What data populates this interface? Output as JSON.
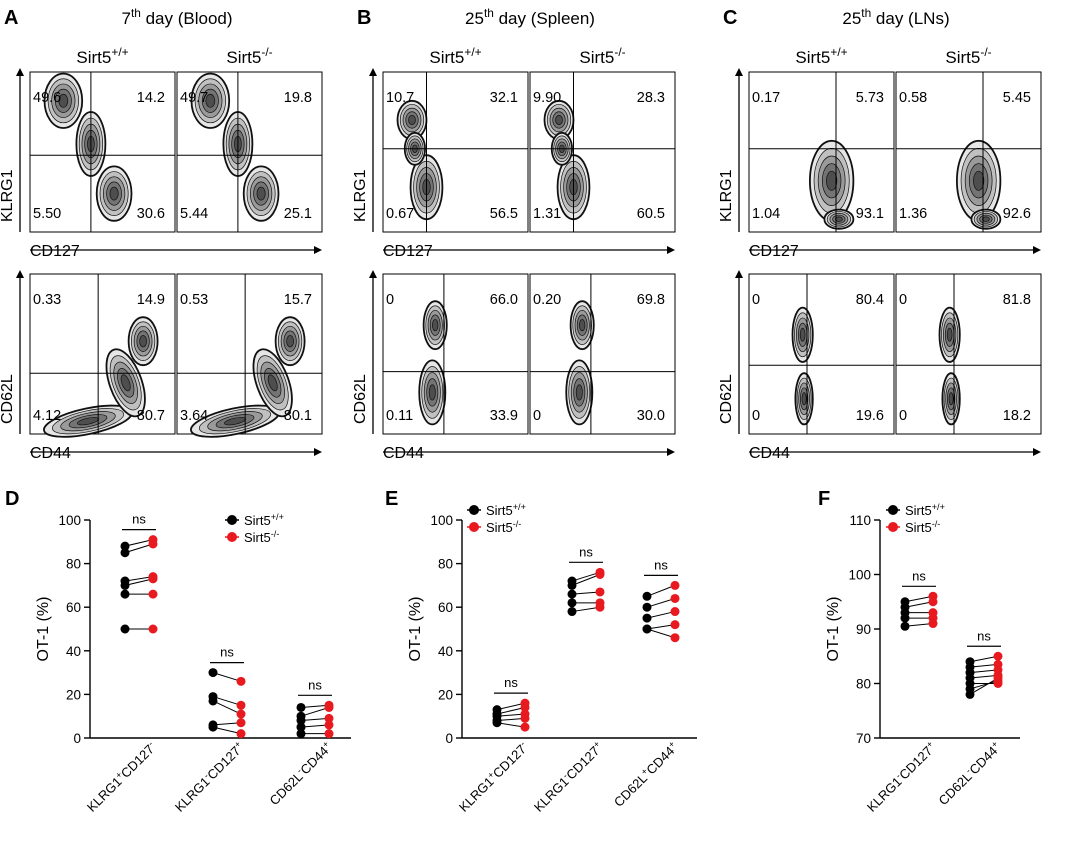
{
  "chart_data": {
    "type": "scatter",
    "colors": {
      "wt": "#000000",
      "ko": "#e8191f",
      "density": "#505050"
    },
    "flow_panels": [
      {
        "letter": "A",
        "title_main": "7",
        "title_sup": "th",
        "title_rest": " day (Blood)",
        "genotypes": [
          {
            "base": "Sirt5",
            "sup": "+/+"
          },
          {
            "base": "Sirt5",
            "sup": "-/-"
          }
        ],
        "rows": [
          {
            "xlabel": "CD127",
            "ylabel": "KLRG1",
            "style": "klrg",
            "plots": [
              {
                "ul": "49.6",
                "ur": "14.2",
                "ll": "5.50",
                "lr": "30.6"
              },
              {
                "ul": "49.7",
                "ur": "19.8",
                "ll": "5.44",
                "lr": "25.1"
              }
            ]
          },
          {
            "xlabel": "CD44",
            "ylabel": "CD62L",
            "style": "blood44",
            "plots": [
              {
                "ul": "0.33",
                "ur": "14.9",
                "ll": "4.12",
                "lr": "80.7"
              },
              {
                "ul": "0.53",
                "ur": "15.7",
                "ll": "3.64",
                "lr": "80.1"
              }
            ]
          }
        ]
      },
      {
        "letter": "B",
        "title_main": "25",
        "title_sup": "th",
        "title_rest": " day (Spleen)",
        "genotypes": [
          {
            "base": "Sirt5",
            "sup": "+/+"
          },
          {
            "base": "Sirt5",
            "sup": "-/-"
          }
        ],
        "rows": [
          {
            "xlabel": "CD127",
            "ylabel": "KLRG1",
            "style": "klrgSp",
            "plots": [
              {
                "ul": "10.7",
                "ur": "32.1",
                "ll": "0.67",
                "lr": "56.5"
              },
              {
                "ul": "9.90",
                "ur": "28.3",
                "ll": "1.31",
                "lr": "60.5"
              }
            ]
          },
          {
            "xlabel": "CD44",
            "ylabel": "CD62L",
            "style": "cd44",
            "plots": [
              {
                "ul": "0",
                "ur": "66.0",
                "ll": "0.11",
                "lr": "33.9"
              },
              {
                "ul": "0.20",
                "ur": "69.8",
                "ll": "0",
                "lr": "30.0"
              }
            ]
          }
        ]
      },
      {
        "letter": "C",
        "title_main": "25",
        "title_sup": "th",
        "title_rest": " day (LNs)",
        "genotypes": [
          {
            "base": "Sirt5",
            "sup": "+/+"
          },
          {
            "base": "Sirt5",
            "sup": "-/-"
          }
        ],
        "rows": [
          {
            "xlabel": "CD127",
            "ylabel": "KLRG1",
            "style": "klrgLn",
            "plots": [
              {
                "ul": "0.17",
                "ur": "5.73",
                "ll": "1.04",
                "lr": "93.1"
              },
              {
                "ul": "0.58",
                "ur": "5.45",
                "ll": "1.36",
                "lr": "92.6"
              }
            ]
          },
          {
            "xlabel": "CD44",
            "ylabel": "CD62L",
            "style": "cd44ln",
            "plots": [
              {
                "ul": "0",
                "ur": "80.4",
                "ll": "0",
                "lr": "19.6"
              },
              {
                "ul": "0",
                "ur": "81.8",
                "ll": "0",
                "lr": "18.2"
              }
            ]
          }
        ]
      }
    ],
    "paired_plots": [
      {
        "letter": "D",
        "ylabel": "OT-1 (%)",
        "ylim": [
          0,
          100
        ],
        "yticks": [
          0,
          20,
          40,
          60,
          80,
          100
        ],
        "legend": [
          {
            "base": "Sirt5",
            "sup": "+/+",
            "group": "wt"
          },
          {
            "base": "Sirt5",
            "sup": "-/-",
            "group": "ko"
          }
        ],
        "groups": [
          {
            "category": [
              {
                "t": "KLRG1"
              },
              {
                "t": "+",
                "s": "sup"
              },
              {
                "t": "CD127"
              },
              {
                "t": "-",
                "s": "sup"
              }
            ],
            "significance": "ns",
            "pairs": [
              [
                88,
                91
              ],
              [
                85,
                89
              ],
              [
                72,
                74
              ],
              [
                70,
                73
              ],
              [
                66,
                66
              ],
              [
                50,
                50
              ]
            ]
          },
          {
            "category": [
              {
                "t": "KLRG1"
              },
              {
                "t": "-",
                "s": "sup"
              },
              {
                "t": "CD127"
              },
              {
                "t": "+",
                "s": "sup"
              }
            ],
            "significance": "ns",
            "pairs": [
              [
                30,
                26
              ],
              [
                19,
                15
              ],
              [
                17,
                11
              ],
              [
                6,
                7
              ],
              [
                5,
                2
              ]
            ]
          },
          {
            "category": [
              {
                "t": "CD62L"
              },
              {
                "t": "-",
                "s": "sup"
              },
              {
                "t": "CD44"
              },
              {
                "t": "+",
                "s": "sup"
              }
            ],
            "significance": "ns",
            "pairs": [
              [
                14,
                15
              ],
              [
                10,
                14
              ],
              [
                8,
                9
              ],
              [
                5,
                6
              ],
              [
                2,
                2
              ]
            ]
          }
        ]
      },
      {
        "letter": "E",
        "ylabel": "OT-1 (%)",
        "ylim": [
          0,
          100
        ],
        "yticks": [
          0,
          20,
          40,
          60,
          80,
          100
        ],
        "legend": [
          {
            "base": "Sirt5",
            "sup": "+/+",
            "group": "wt"
          },
          {
            "base": "Sirt5",
            "sup": "-/-",
            "group": "ko"
          }
        ],
        "groups": [
          {
            "category": [
              {
                "t": "KLRG1"
              },
              {
                "t": "+",
                "s": "sup"
              },
              {
                "t": "CD127"
              },
              {
                "t": "-",
                "s": "sup"
              }
            ],
            "significance": "ns",
            "pairs": [
              [
                13,
                16
              ],
              [
                11,
                14
              ],
              [
                10,
                11
              ],
              [
                8,
                9
              ],
              [
                7,
                5
              ]
            ]
          },
          {
            "category": [
              {
                "t": "KLRG1"
              },
              {
                "t": "-",
                "s": "sup"
              },
              {
                "t": "CD127"
              },
              {
                "t": "+",
                "s": "sup"
              }
            ],
            "significance": "ns",
            "pairs": [
              [
                72,
                76
              ],
              [
                70,
                75
              ],
              [
                66,
                67
              ],
              [
                62,
                62
              ],
              [
                58,
                60
              ]
            ]
          },
          {
            "category": [
              {
                "t": "CD62L"
              },
              {
                "t": "+",
                "s": "sup"
              },
              {
                "t": "CD44"
              },
              {
                "t": "+",
                "s": "sup"
              }
            ],
            "significance": "ns",
            "pairs": [
              [
                65,
                70
              ],
              [
                60,
                64
              ],
              [
                55,
                58
              ],
              [
                50,
                52
              ],
              [
                50,
                46
              ]
            ]
          }
        ]
      },
      {
        "letter": "F",
        "ylabel": "OT-1 (%)",
        "ylim": [
          70,
          110
        ],
        "yticks": [
          70,
          80,
          90,
          100,
          110
        ],
        "legend": [
          {
            "base": "Sirt5",
            "sup": "+/+",
            "group": "wt"
          },
          {
            "base": "Sirt5",
            "sup": "-/-",
            "group": "ko"
          }
        ],
        "groups": [
          {
            "category": [
              {
                "t": "KLRG1"
              },
              {
                "t": "-",
                "s": "sup"
              },
              {
                "t": "CD127"
              },
              {
                "t": "+",
                "s": "sup"
              }
            ],
            "significance": "ns",
            "pairs": [
              [
                95,
                96
              ],
              [
                94,
                95
              ],
              [
                93,
                93
              ],
              [
                92,
                92
              ],
              [
                90.5,
                91
              ]
            ]
          },
          {
            "category": [
              {
                "t": "CD62L"
              },
              {
                "t": "-",
                "s": "sup"
              },
              {
                "t": "CD44"
              },
              {
                "t": "+",
                "s": "sup"
              }
            ],
            "significance": "ns",
            "pairs": [
              [
                84,
                85
              ],
              [
                83,
                83.5
              ],
              [
                82,
                82.5
              ],
              [
                81,
                81.5
              ],
              [
                80,
                80
              ],
              [
                79,
                80.5
              ],
              [
                78,
                81
              ]
            ]
          }
        ]
      }
    ]
  }
}
